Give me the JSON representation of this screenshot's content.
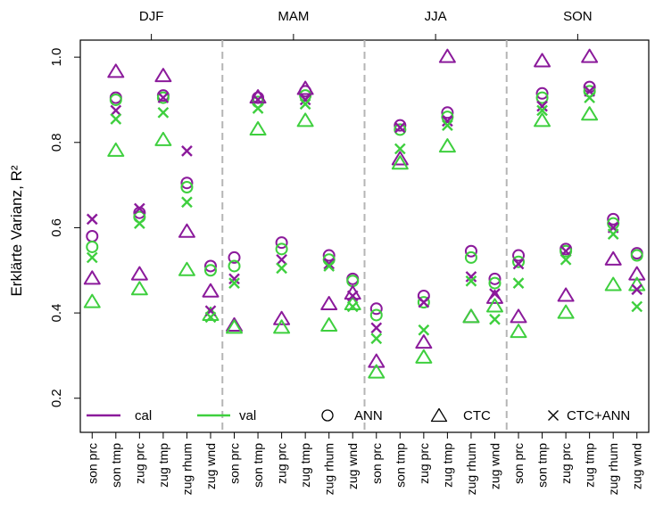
{
  "chart_data": {
    "type": "scatter",
    "ylabel": "Erklärte Varianz, R²",
    "ylim": [
      0.12,
      1.04
    ],
    "y_ticks": [
      0.2,
      0.4,
      0.6,
      0.8,
      1.0
    ],
    "y_tick_labels": [
      "0.2",
      "0.4",
      "0.6",
      "0.8",
      "1.0"
    ],
    "grid": false,
    "legend_position": "bottom",
    "legend": {
      "cal": "cal",
      "val": "val",
      "ann": "ANN",
      "ctc": "CTC",
      "ctcann": "CTC+ANN"
    },
    "colors": {
      "cal": "#8b1a9b",
      "val": "#3ecf3e",
      "divider": "#b5b5b5"
    },
    "seasons": [
      "DJF",
      "MAM",
      "JJA",
      "SON"
    ],
    "categories": [
      "son prc",
      "son tmp",
      "zug prc",
      "zug tmp",
      "zug rhum",
      "zug wnd",
      "son prc",
      "son tmp",
      "zug prc",
      "zug tmp",
      "zug rhum",
      "zug wnd",
      "son prc",
      "son tmp",
      "zug prc",
      "zug tmp",
      "zug rhum",
      "zug wnd",
      "son prc",
      "son tmp",
      "zug prc",
      "zug tmp",
      "zug rhum",
      "zug wnd"
    ],
    "series": [
      {
        "name": "cal",
        "method": "ANN",
        "color": "#8b1a9b",
        "marker": "circle",
        "values": [
          0.58,
          0.905,
          0.635,
          0.91,
          0.705,
          0.51,
          0.53,
          0.905,
          0.565,
          0.92,
          0.535,
          0.48,
          0.41,
          0.84,
          0.44,
          0.87,
          0.545,
          0.48,
          0.535,
          0.915,
          0.55,
          0.93,
          0.62,
          0.54
        ]
      },
      {
        "name": "val",
        "method": "ANN",
        "color": "#3ecf3e",
        "marker": "circle",
        "values": [
          0.555,
          0.9,
          0.625,
          0.905,
          0.695,
          0.5,
          0.51,
          0.895,
          0.55,
          0.91,
          0.525,
          0.475,
          0.395,
          0.83,
          0.425,
          0.86,
          0.53,
          0.47,
          0.52,
          0.905,
          0.545,
          0.92,
          0.61,
          0.535
        ]
      },
      {
        "name": "cal",
        "method": "CTC",
        "color": "#8b1a9b",
        "marker": "triangle",
        "values": [
          0.48,
          0.965,
          0.49,
          0.955,
          0.59,
          0.45,
          0.37,
          0.905,
          0.385,
          0.925,
          0.42,
          0.445,
          0.285,
          0.76,
          0.33,
          1.0,
          0.39,
          0.435,
          0.39,
          0.99,
          0.44,
          1.0,
          0.525,
          0.49
        ]
      },
      {
        "name": "val",
        "method": "CTC",
        "color": "#3ecf3e",
        "marker": "triangle",
        "values": [
          0.425,
          0.78,
          0.455,
          0.805,
          0.5,
          0.395,
          0.365,
          0.83,
          0.365,
          0.85,
          0.37,
          0.42,
          0.26,
          0.75,
          0.295,
          0.79,
          0.39,
          0.415,
          0.355,
          0.85,
          0.4,
          0.865,
          0.465,
          0.465
        ]
      },
      {
        "name": "cal",
        "method": "CTC+ANN",
        "color": "#8b1a9b",
        "marker": "cross",
        "values": [
          0.62,
          0.875,
          0.645,
          0.905,
          0.78,
          0.405,
          0.48,
          0.9,
          0.525,
          0.9,
          0.515,
          0.44,
          0.365,
          0.835,
          0.425,
          0.85,
          0.485,
          0.445,
          0.515,
          0.885,
          0.545,
          0.92,
          0.6,
          0.455
        ]
      },
      {
        "name": "val",
        "method": "CTC+ANN",
        "color": "#3ecf3e",
        "marker": "cross",
        "values": [
          0.53,
          0.855,
          0.61,
          0.87,
          0.66,
          0.39,
          0.47,
          0.88,
          0.505,
          0.89,
          0.51,
          0.415,
          0.34,
          0.785,
          0.36,
          0.84,
          0.475,
          0.385,
          0.47,
          0.875,
          0.525,
          0.905,
          0.585,
          0.415
        ]
      }
    ]
  }
}
